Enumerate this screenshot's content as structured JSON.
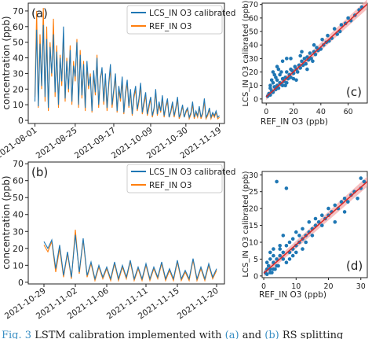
{
  "colors": {
    "lcs": "#1f77b4",
    "ref": "#ff7f0e",
    "fit": "#d62728",
    "band": "#f4a5a5",
    "scatter": "#1f77b4",
    "ref_link": "#3a8fc4"
  },
  "caption": {
    "prefix": "Fig. 3",
    "body": "LSTM calibration implemented with",
    "a": "(a)",
    "and": "and",
    "b": "(b)",
    "suffix": "RS splitting"
  },
  "chart_data": [
    {
      "id": "a",
      "type": "line",
      "panel_label": "(a)",
      "ylabel": "concentration (ppb)",
      "xlabel": "",
      "xlim": [
        "2021-07-28",
        "2021-11-22"
      ],
      "ylim": [
        -2,
        75
      ],
      "yticks": [
        0,
        10,
        20,
        30,
        40,
        50,
        60,
        70
      ],
      "xticks": [
        "2021-08-01",
        "2021-08-25",
        "2021-09-17",
        "2021-10-09",
        "2021-10-30",
        "2021-11-19"
      ],
      "grid": false,
      "legend": "top-right",
      "series": [
        {
          "name": "LCS_IN O3 calibrated",
          "x": [
            "2021-08-01",
            "2021-08-02",
            "2021-08-03",
            "2021-08-04",
            "2021-08-05",
            "2021-08-06",
            "2021-08-07",
            "2021-08-08",
            "2021-08-09",
            "2021-08-10",
            "2021-08-11",
            "2021-08-12",
            "2021-08-13",
            "2021-08-14",
            "2021-08-15",
            "2021-08-16",
            "2021-08-17",
            "2021-08-18",
            "2021-08-19",
            "2021-08-20",
            "2021-08-21",
            "2021-08-22",
            "2021-08-23",
            "2021-08-24",
            "2021-08-25",
            "2021-08-26",
            "2021-08-27",
            "2021-08-28",
            "2021-08-29",
            "2021-08-30",
            "2021-08-31",
            "2021-09-01",
            "2021-09-02",
            "2021-09-03",
            "2021-09-04",
            "2021-09-05",
            "2021-09-06",
            "2021-09-07",
            "2021-09-08",
            "2021-09-09",
            "2021-09-10",
            "2021-09-11",
            "2021-09-12",
            "2021-09-13",
            "2021-09-14",
            "2021-09-15",
            "2021-09-16",
            "2021-09-17",
            "2021-09-18",
            "2021-09-19",
            "2021-09-20",
            "2021-09-21",
            "2021-09-22",
            "2021-09-23",
            "2021-09-24",
            "2021-09-25",
            "2021-09-26",
            "2021-09-27",
            "2021-09-28",
            "2021-09-29",
            "2021-09-30",
            "2021-10-01",
            "2021-10-02",
            "2021-10-03",
            "2021-10-04",
            "2021-10-05",
            "2021-10-06",
            "2021-10-07",
            "2021-10-08",
            "2021-10-09",
            "2021-10-10",
            "2021-10-11",
            "2021-10-12",
            "2021-10-13",
            "2021-10-14",
            "2021-10-15",
            "2021-10-16",
            "2021-10-17",
            "2021-10-18",
            "2021-10-19",
            "2021-10-20",
            "2021-10-21",
            "2021-10-22",
            "2021-10-23",
            "2021-10-24",
            "2021-10-25",
            "2021-10-26",
            "2021-10-27",
            "2021-10-28",
            "2021-10-29",
            "2021-10-30",
            "2021-10-31",
            "2021-11-01",
            "2021-11-02",
            "2021-11-03",
            "2021-11-04",
            "2021-11-05",
            "2021-11-06",
            "2021-11-07",
            "2021-11-08",
            "2021-11-09",
            "2021-11-10",
            "2021-11-11",
            "2021-11-12",
            "2021-11-13",
            "2021-11-14",
            "2021-11-15",
            "2021-11-16",
            "2021-11-17",
            "2021-11-18",
            "2021-11-19"
          ],
          "y": [
            12,
            58,
            9,
            49,
            22,
            61,
            15,
            52,
            8,
            47,
            30,
            55,
            18,
            44,
            10,
            40,
            25,
            60,
            14,
            38,
            20,
            45,
            12,
            35,
            28,
            50,
            10,
            42,
            16,
            36,
            8,
            38,
            22,
            28,
            6,
            32,
            18,
            40,
            10,
            26,
            34,
            12,
            30,
            8,
            24,
            36,
            10,
            20,
            30,
            6,
            22,
            14,
            28,
            5,
            18,
            26,
            9,
            20,
            4,
            16,
            22,
            7,
            14,
            24,
            5,
            12,
            18,
            4,
            10,
            15,
            3,
            8,
            20,
            4,
            12,
            6,
            16,
            3,
            9,
            14,
            2,
            6,
            12,
            3,
            8,
            15,
            2,
            5,
            10,
            2,
            6,
            8,
            2,
            5,
            12,
            2,
            6,
            3,
            9,
            2,
            5,
            14,
            2,
            4,
            8,
            2,
            5,
            3,
            6,
            2,
            3
          ]
        },
        {
          "name": "REF_IN O3",
          "x": [
            "2021-08-01",
            "2021-08-02",
            "2021-08-03",
            "2021-08-04",
            "2021-08-05",
            "2021-08-06",
            "2021-08-07",
            "2021-08-08",
            "2021-08-09",
            "2021-08-10",
            "2021-08-11",
            "2021-08-12",
            "2021-08-13",
            "2021-08-14",
            "2021-08-15",
            "2021-08-16",
            "2021-08-17",
            "2021-08-18",
            "2021-08-19",
            "2021-08-20",
            "2021-08-21",
            "2021-08-22",
            "2021-08-23",
            "2021-08-24",
            "2021-08-25",
            "2021-08-26",
            "2021-08-27",
            "2021-08-28",
            "2021-08-29",
            "2021-08-30",
            "2021-08-31",
            "2021-09-01",
            "2021-09-02",
            "2021-09-03",
            "2021-09-04",
            "2021-09-05",
            "2021-09-06",
            "2021-09-07",
            "2021-09-08",
            "2021-09-09",
            "2021-09-10",
            "2021-09-11",
            "2021-09-12",
            "2021-09-13",
            "2021-09-14",
            "2021-09-15",
            "2021-09-16",
            "2021-09-17",
            "2021-09-18",
            "2021-09-19",
            "2021-09-20",
            "2021-09-21",
            "2021-09-22",
            "2021-09-23",
            "2021-09-24",
            "2021-09-25",
            "2021-09-26",
            "2021-09-27",
            "2021-09-28",
            "2021-09-29",
            "2021-09-30",
            "2021-10-01",
            "2021-10-02",
            "2021-10-03",
            "2021-10-04",
            "2021-10-05",
            "2021-10-06",
            "2021-10-07",
            "2021-10-08",
            "2021-10-09",
            "2021-10-10",
            "2021-10-11",
            "2021-10-12",
            "2021-10-13",
            "2021-10-14",
            "2021-10-15",
            "2021-10-16",
            "2021-10-17",
            "2021-10-18",
            "2021-10-19",
            "2021-10-20",
            "2021-10-21",
            "2021-10-22",
            "2021-10-23",
            "2021-10-24",
            "2021-10-25",
            "2021-10-26",
            "2021-10-27",
            "2021-10-28",
            "2021-10-29",
            "2021-10-30",
            "2021-10-31",
            "2021-11-01",
            "2021-11-02",
            "2021-11-03",
            "2021-11-04",
            "2021-11-05",
            "2021-11-06",
            "2021-11-07",
            "2021-11-08",
            "2021-11-09",
            "2021-11-10",
            "2021-11-11",
            "2021-11-12",
            "2021-11-13",
            "2021-11-14",
            "2021-11-15",
            "2021-11-16",
            "2021-11-17",
            "2021-11-18",
            "2021-11-19"
          ],
          "y": [
            15,
            70,
            8,
            55,
            20,
            72,
            12,
            60,
            6,
            50,
            28,
            65,
            15,
            48,
            8,
            42,
            22,
            56,
            12,
            40,
            18,
            48,
            10,
            38,
            25,
            52,
            8,
            45,
            14,
            38,
            6,
            35,
            20,
            30,
            5,
            30,
            16,
            42,
            8,
            28,
            32,
            10,
            28,
            6,
            22,
            34,
            8,
            18,
            28,
            5,
            20,
            12,
            26,
            4,
            16,
            24,
            8,
            18,
            3,
            14,
            20,
            6,
            12,
            22,
            4,
            10,
            16,
            3,
            8,
            14,
            2,
            7,
            18,
            3,
            10,
            5,
            14,
            2,
            8,
            12,
            2,
            5,
            10,
            2,
            7,
            13,
            1,
            4,
            9,
            2,
            5,
            7,
            1,
            4,
            10,
            1,
            5,
            2,
            8,
            1,
            4,
            12,
            1,
            3,
            7,
            1,
            4,
            2,
            5,
            1,
            2
          ]
        }
      ]
    },
    {
      "id": "b",
      "type": "line",
      "panel_label": "(b)",
      "ylabel": "concentration (ppb)",
      "xlabel": "",
      "xlim": [
        "2021-10-27",
        "2021-11-21"
      ],
      "ylim": [
        -1,
        71
      ],
      "yticks": [
        0,
        10,
        20,
        30,
        40,
        50,
        60,
        70
      ],
      "xticks": [
        "2021-10-29",
        "2021-11-02",
        "2021-11-06",
        "2021-11-11",
        "2021-11-15",
        "2021-11-20"
      ],
      "grid": false,
      "legend": "top-right",
      "series": [
        {
          "name": "LCS_IN O3 calibrated",
          "x": [
            "2021-10-29",
            "2021-10-29T12",
            "2021-10-30",
            "2021-10-30T12",
            "2021-10-31",
            "2021-10-31T12",
            "2021-11-01",
            "2021-11-01T12",
            "2021-11-02",
            "2021-11-02T12",
            "2021-11-03",
            "2021-11-03T12",
            "2021-11-04",
            "2021-11-04T12",
            "2021-11-05",
            "2021-11-05T12",
            "2021-11-06",
            "2021-11-06T12",
            "2021-11-07",
            "2021-11-07T12",
            "2021-11-08",
            "2021-11-08T12",
            "2021-11-09",
            "2021-11-09T12",
            "2021-11-10",
            "2021-11-10T12",
            "2021-11-11",
            "2021-11-11T12",
            "2021-11-12",
            "2021-11-12T12",
            "2021-11-13",
            "2021-11-13T12",
            "2021-11-14",
            "2021-11-14T12",
            "2021-11-15",
            "2021-11-15T12",
            "2021-11-16",
            "2021-11-16T12",
            "2021-11-17",
            "2021-11-17T12",
            "2021-11-18",
            "2021-11-18T12",
            "2021-11-19",
            "2021-11-19T12",
            "2021-11-20"
          ],
          "y": [
            24,
            20,
            25,
            8,
            22,
            4,
            18,
            3,
            28,
            6,
            26,
            4,
            12,
            2,
            10,
            3,
            9,
            2,
            12,
            2,
            10,
            3,
            13,
            2,
            9,
            2,
            11,
            2,
            9,
            3,
            12,
            2,
            8,
            2,
            13,
            2,
            7,
            2,
            14,
            2,
            9,
            2,
            11,
            3,
            8
          ]
        },
        {
          "name": "REF_IN O3",
          "x": [
            "2021-10-29",
            "2021-10-29T12",
            "2021-10-30",
            "2021-10-30T12",
            "2021-10-31",
            "2021-10-31T12",
            "2021-11-01",
            "2021-11-01T12",
            "2021-11-02",
            "2021-11-02T12",
            "2021-11-03",
            "2021-11-03T12",
            "2021-11-04",
            "2021-11-04T12",
            "2021-11-05",
            "2021-11-05T12",
            "2021-11-06",
            "2021-11-06T12",
            "2021-11-07",
            "2021-11-07T12",
            "2021-11-08",
            "2021-11-08T12",
            "2021-11-09",
            "2021-11-09T12",
            "2021-11-10",
            "2021-11-10T12",
            "2021-11-11",
            "2021-11-11T12",
            "2021-11-12",
            "2021-11-12T12",
            "2021-11-13",
            "2021-11-13T12",
            "2021-11-14",
            "2021-11-14T12",
            "2021-11-15",
            "2021-11-15T12",
            "2021-11-16",
            "2021-11-16T12",
            "2021-11-17",
            "2021-11-17T12",
            "2021-11-18",
            "2021-11-18T12",
            "2021-11-19",
            "2021-11-19T12",
            "2021-11-20"
          ],
          "y": [
            22,
            18,
            24,
            6,
            20,
            3,
            17,
            2,
            31,
            5,
            25,
            3,
            11,
            1,
            9,
            2,
            8,
            1,
            11,
            1,
            9,
            2,
            12,
            1,
            8,
            1,
            10,
            1,
            8,
            2,
            11,
            1,
            7,
            1,
            12,
            1,
            6,
            1,
            13,
            1,
            8,
            1,
            10,
            2,
            7
          ]
        }
      ]
    },
    {
      "id": "c",
      "type": "scatter",
      "panel_label": "(c)",
      "xlabel": "REF_IN O3 (ppb)",
      "ylabel": "LCS_IN O3 calibrated (ppb)",
      "xlim": [
        -3,
        74
      ],
      "ylim": [
        -3,
        71
      ],
      "xticks": [
        0,
        20,
        40,
        60
      ],
      "yticks": [
        0,
        10,
        20,
        30,
        40,
        50,
        60,
        70
      ],
      "grid": false,
      "fit": {
        "slope": 0.93,
        "intercept": 1.5
      },
      "x": [
        1,
        2,
        3,
        3,
        4,
        5,
        5,
        6,
        7,
        8,
        8,
        9,
        10,
        10,
        11,
        12,
        12,
        13,
        14,
        15,
        15,
        16,
        17,
        18,
        18,
        19,
        20,
        21,
        22,
        23,
        24,
        25,
        26,
        27,
        28,
        29,
        30,
        31,
        32,
        33,
        34,
        35,
        36,
        37,
        38,
        40,
        41,
        42,
        44,
        45,
        46,
        48,
        50,
        52,
        54,
        55,
        58,
        60,
        62,
        65,
        68,
        70,
        5,
        8,
        12,
        15,
        20,
        25,
        30,
        35,
        4,
        6,
        9,
        14,
        18,
        22,
        26,
        3,
        7,
        11
      ],
      "y": [
        2,
        4,
        3,
        8,
        6,
        5,
        12,
        9,
        7,
        10,
        14,
        8,
        12,
        18,
        11,
        10,
        15,
        13,
        16,
        12,
        20,
        15,
        18,
        22,
        16,
        21,
        19,
        24,
        22,
        20,
        25,
        23,
        28,
        25,
        30,
        26,
        31,
        29,
        34,
        30,
        28,
        35,
        33,
        38,
        36,
        37,
        44,
        40,
        42,
        47,
        43,
        45,
        52,
        48,
        50,
        55,
        56,
        60,
        58,
        62,
        66,
        68,
        20,
        24,
        28,
        30,
        15,
        32,
        22,
        40,
        14,
        18,
        22,
        10,
        30,
        14,
        35,
        10,
        16,
        20
      ]
    },
    {
      "id": "d",
      "type": "scatter",
      "panel_label": "(d)",
      "xlabel": "REF_IN O3 (ppb)",
      "ylabel": "LCS_IN O3 calibrated (ppb)",
      "xlim": [
        -0.5,
        32
      ],
      "ylim": [
        -0.5,
        31
      ],
      "xticks": [
        0,
        10,
        20,
        30
      ],
      "yticks": [
        0,
        5,
        10,
        15,
        20,
        25,
        30
      ],
      "grid": false,
      "fit": {
        "slope": 0.85,
        "intercept": 0.8
      },
      "x": [
        0.5,
        1,
        1,
        1.5,
        2,
        2,
        2.5,
        3,
        3,
        3.5,
        4,
        4,
        4.5,
        5,
        5,
        6,
        6,
        7,
        7,
        8,
        8,
        9,
        9,
        10,
        10,
        11,
        11,
        12,
        12,
        13,
        13,
        14,
        14,
        15,
        15,
        16,
        16,
        17,
        18,
        18,
        19,
        20,
        20,
        21,
        22,
        22,
        23,
        24,
        25,
        25,
        26,
        27,
        28,
        29,
        30,
        30,
        31,
        4,
        5,
        3,
        2,
        6,
        7,
        8,
        1,
        2,
        3,
        9,
        10,
        12
      ],
      "y": [
        1,
        2,
        0.5,
        3,
        2,
        5,
        1,
        4,
        6,
        2,
        28,
        5,
        3,
        6,
        8,
        5,
        7,
        26,
        9,
        7,
        10,
        8,
        11,
        9,
        13,
        10,
        12,
        11,
        14,
        12,
        10,
        13,
        16,
        14,
        12,
        15,
        17,
        16,
        15,
        18,
        17,
        18,
        20,
        19,
        16,
        21,
        20,
        22,
        23,
        19,
        22,
        24,
        25,
        23,
        26,
        29,
        28,
        3,
        9,
        8,
        7,
        12,
        4,
        5,
        4,
        1,
        2,
        6,
        7,
        8
      ]
    }
  ]
}
